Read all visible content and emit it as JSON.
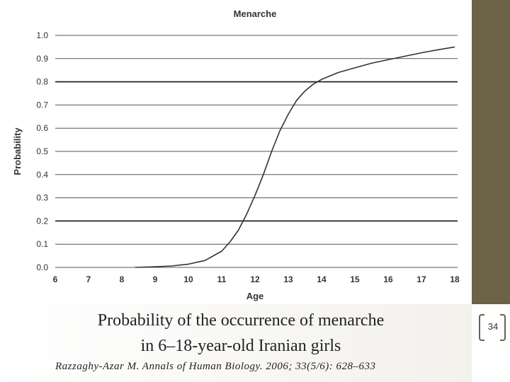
{
  "slide": {
    "caption_line1": "Probability of the occurrence of menarche",
    "caption_line2": "in 6–18-year-old Iranian girls",
    "citation": "Razzaghy-Azar M. Annals of Human Biology. 2006; 33(5/6): 628–633",
    "slide_number": "34",
    "accent_color": "#6b6248"
  },
  "chart_data": {
    "type": "line",
    "title": "Menarche",
    "xlabel": "Age",
    "ylabel": "Probability",
    "xlim": [
      6,
      18
    ],
    "ylim": [
      0,
      1.0
    ],
    "xticks": [
      "6",
      "7",
      "8",
      "9",
      "10",
      "11",
      "12",
      "13",
      "14",
      "15",
      "16",
      "17",
      "18"
    ],
    "yticks": [
      "0.0",
      "0.1",
      "0.2",
      "0.3",
      "0.4",
      "0.5",
      "0.6",
      "0.7",
      "0.8",
      "0.9",
      "1.0"
    ],
    "grid": "horizontal",
    "series": [
      {
        "color": "#333333",
        "x": [
          8.4,
          9,
          9.5,
          10,
          10.5,
          11,
          11.25,
          11.5,
          11.75,
          12,
          12.25,
          12.5,
          12.75,
          13,
          13.25,
          13.5,
          13.75,
          14,
          14.5,
          15,
          15.5,
          16,
          16.5,
          17,
          17.5,
          18
        ],
        "y": [
          0.0,
          0.003,
          0.006,
          0.014,
          0.03,
          0.07,
          0.11,
          0.16,
          0.23,
          0.31,
          0.4,
          0.5,
          0.59,
          0.66,
          0.72,
          0.76,
          0.79,
          0.81,
          0.84,
          0.86,
          0.88,
          0.895,
          0.91,
          0.925,
          0.938,
          0.95
        ]
      }
    ]
  }
}
